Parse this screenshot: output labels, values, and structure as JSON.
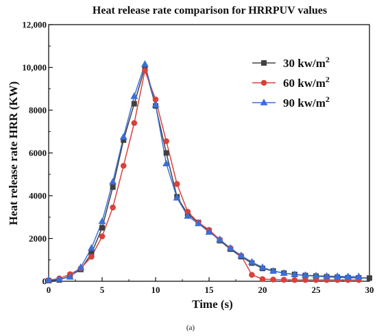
{
  "chart_data": {
    "type": "line",
    "title": "Heat release rate comparison for HRRPUV values",
    "xlabel": "Time (s)",
    "ylabel": "Heat release rate HRR (KW)",
    "xlim": [
      0,
      30
    ],
    "ylim": [
      0,
      12000
    ],
    "xticks": [
      0,
      5,
      10,
      15,
      20,
      25,
      30
    ],
    "yticks": [
      0,
      2000,
      4000,
      6000,
      8000,
      10000,
      12000
    ],
    "xtick_labels": [
      "0",
      "5",
      "10",
      "15",
      "20",
      "25",
      "30"
    ],
    "ytick_labels": [
      "0",
      "2000",
      "4000",
      "6000",
      "8000",
      "10,000",
      "12,000"
    ],
    "grid": false,
    "legend_position": "top-right",
    "series": [
      {
        "name": "30 kw/m",
        "name_sup": "2",
        "color": "#404040",
        "marker": "square",
        "x": [
          0,
          1,
          2,
          3,
          4,
          5,
          6,
          7,
          8,
          9,
          10,
          11,
          12,
          13,
          14,
          15,
          16,
          17,
          18,
          19,
          20,
          21,
          22,
          23,
          24,
          25,
          26,
          27,
          28,
          29,
          30
        ],
        "y": [
          30,
          60,
          250,
          550,
          1300,
          2500,
          4400,
          6600,
          8300,
          10000,
          8200,
          6000,
          3950,
          3150,
          2750,
          2350,
          1900,
          1500,
          1150,
          850,
          600,
          480,
          380,
          320,
          270,
          240,
          210,
          190,
          170,
          160,
          150
        ]
      },
      {
        "name": "60 kw/m",
        "name_sup": "2",
        "color": "#d9413a",
        "marker": "circle",
        "x": [
          0,
          1,
          2,
          3,
          4,
          5,
          6,
          7,
          8,
          9,
          10,
          11,
          12,
          13,
          14,
          15,
          16,
          17,
          18,
          19,
          20,
          21,
          22,
          23,
          24,
          25,
          26,
          27,
          28,
          29
        ],
        "y": [
          50,
          130,
          330,
          600,
          1150,
          2100,
          3450,
          5400,
          7400,
          9850,
          8500,
          6550,
          4550,
          3250,
          2750,
          2400,
          1950,
          1550,
          1200,
          300,
          100,
          80,
          70,
          60,
          60,
          60,
          60,
          60,
          60,
          60
        ]
      },
      {
        "name": "90 kw/m",
        "name_sup": "2",
        "color": "#3a6fd8",
        "marker": "triangle",
        "x": [
          0,
          1,
          2,
          3,
          4,
          5,
          6,
          7,
          8,
          9,
          10,
          11,
          12,
          13,
          14,
          15,
          16,
          17,
          18,
          19,
          20,
          21,
          22,
          23,
          24,
          25,
          26,
          27,
          28,
          29
        ],
        "y": [
          60,
          100,
          200,
          650,
          1550,
          2800,
          4650,
          6750,
          8650,
          10150,
          8250,
          5500,
          3900,
          3050,
          2700,
          2300,
          1950,
          1550,
          1200,
          900,
          650,
          480,
          380,
          320,
          280,
          260,
          240,
          230,
          220,
          220
        ]
      }
    ],
    "caption": "(a)"
  }
}
